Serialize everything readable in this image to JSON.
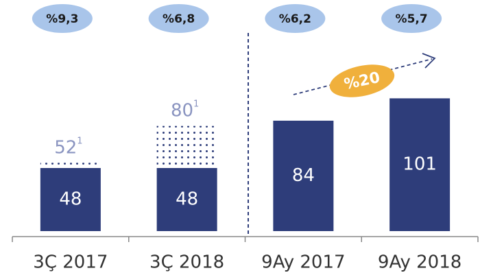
{
  "chart_data": {
    "type": "bar",
    "categories": [
      "3Ç 2017",
      "3Ç 2018",
      "9Ay 2017",
      "9Ay 2018"
    ],
    "series": [
      {
        "color": "#2e3d7a",
        "values": [
          48,
          48,
          84,
          101
        ]
      },
      {
        "color": "#2e3d7a",
        "pattern": "dotted",
        "values": [
          4,
          32,
          null,
          null
        ]
      }
    ],
    "total_labels": [
      "52",
      "80",
      null,
      null
    ],
    "footnotes": [
      "1",
      "1",
      null,
      null
    ],
    "ratios": [
      "%9,3",
      "%6,8",
      "%6,2",
      "%5,7"
    ],
    "growth": "%20"
  }
}
